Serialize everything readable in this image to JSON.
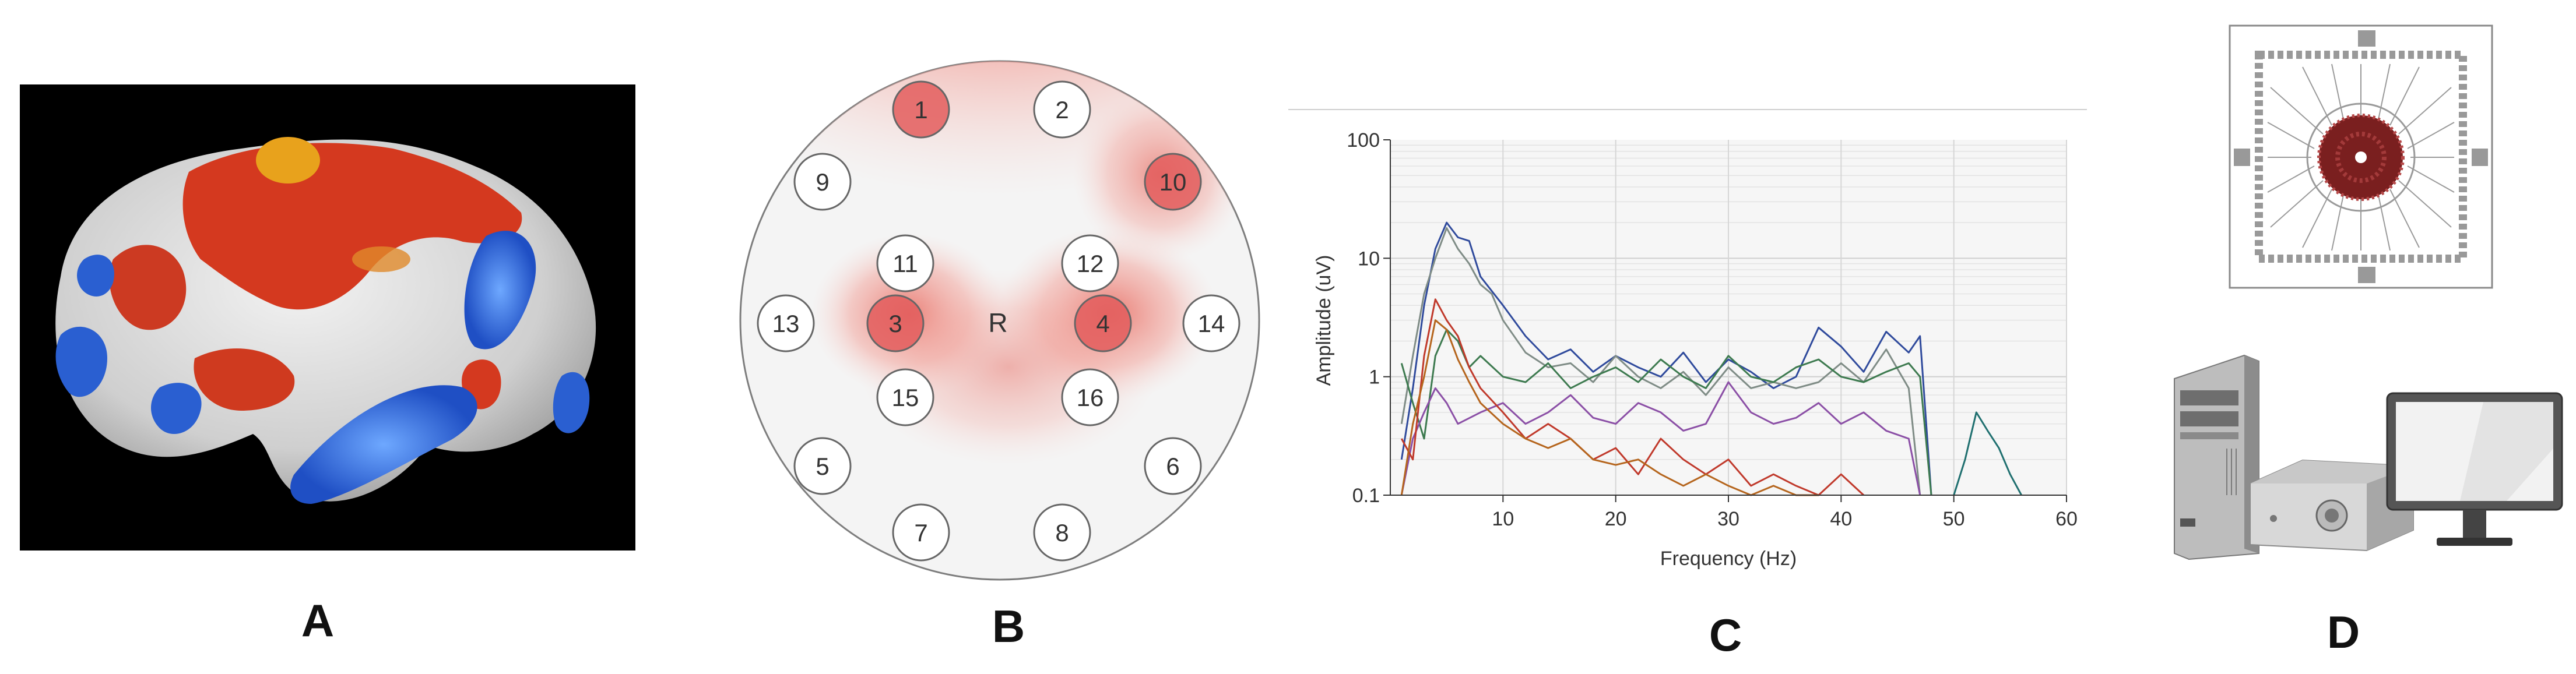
{
  "figure": {
    "panels": [
      {
        "letter": "A",
        "content": "brain-surface-activation-map"
      },
      {
        "letter": "B",
        "content": "electrode-topography-map"
      },
      {
        "letter": "C",
        "content": "amplitude-spectrum-chart"
      },
      {
        "letter": "D",
        "content": "recording-hardware-illustration"
      }
    ]
  },
  "brain_map": {
    "colors": {
      "background": "#000000",
      "cortex": "#d9d9d9",
      "positive": "#d4391f",
      "positive_peak": "#e8a21c",
      "negative": "#2a5fd1"
    }
  },
  "topography": {
    "reference_label": "R",
    "electrodes": [
      {
        "label": "1",
        "active": true
      },
      {
        "label": "2",
        "active": false
      },
      {
        "label": "3",
        "active": true
      },
      {
        "label": "4",
        "active": true
      },
      {
        "label": "5",
        "active": false
      },
      {
        "label": "6",
        "active": false
      },
      {
        "label": "7",
        "active": false
      },
      {
        "label": "8",
        "active": false
      },
      {
        "label": "9",
        "active": false
      },
      {
        "label": "10",
        "active": true
      },
      {
        "label": "11",
        "active": false
      },
      {
        "label": "12",
        "active": false
      },
      {
        "label": "13",
        "active": false
      },
      {
        "label": "14",
        "active": false
      },
      {
        "label": "15",
        "active": false
      },
      {
        "label": "16",
        "active": false
      }
    ],
    "colors": {
      "heat": "#e8685c",
      "active_fill": "#e35d5d",
      "idle_fill": "#ffffff",
      "outline": "#666666"
    }
  },
  "chart_data": {
    "type": "line",
    "title": "",
    "xlabel": "Frequency (Hz)",
    "ylabel": "Amplitude (uV)",
    "xlim": [
      0,
      60
    ],
    "ylim": [
      0.1,
      100
    ],
    "yscale": "log",
    "x_ticks": [
      "10",
      "20",
      "30",
      "40",
      "50",
      "60"
    ],
    "y_ticks": [
      "0.1",
      "1",
      "10",
      "100"
    ],
    "grid": true,
    "series": [
      {
        "name": "blue",
        "color": "#2f4a9c",
        "x": [
          1,
          2,
          3,
          4,
          5,
          6,
          7,
          8,
          10,
          12,
          14,
          16,
          18,
          20,
          22,
          24,
          26,
          28,
          30,
          32,
          34,
          36,
          38,
          40,
          42,
          44,
          46,
          47,
          48
        ],
        "y": [
          0.2,
          0.8,
          4,
          12,
          20,
          15,
          14,
          7,
          4,
          2.2,
          1.4,
          1.7,
          1.1,
          1.5,
          1.2,
          1.0,
          1.6,
          0.9,
          1.4,
          1.1,
          0.8,
          1.0,
          2.6,
          1.8,
          1.1,
          2.4,
          1.6,
          2.2,
          0.1
        ]
      },
      {
        "name": "gray",
        "color": "#7f8c86",
        "x": [
          1,
          2,
          3,
          4,
          5,
          6,
          7,
          8,
          9,
          10,
          12,
          14,
          16,
          18,
          20,
          22,
          24,
          26,
          28,
          30,
          32,
          34,
          36,
          38,
          40,
          42,
          44,
          46,
          47
        ],
        "y": [
          0.4,
          1.5,
          5,
          10,
          18,
          12,
          9,
          6,
          5,
          3,
          1.6,
          1.2,
          1.3,
          0.9,
          1.5,
          1.0,
          0.8,
          1.1,
          0.7,
          1.2,
          0.8,
          0.9,
          0.8,
          0.9,
          1.3,
          0.9,
          1.7,
          0.8,
          0.1
        ]
      },
      {
        "name": "green",
        "color": "#3d7a4f",
        "x": [
          1,
          2,
          3,
          4,
          5,
          6,
          7,
          8,
          10,
          12,
          14,
          16,
          18,
          20,
          22,
          24,
          26,
          28,
          30,
          32,
          34,
          36,
          38,
          40,
          42,
          44,
          46,
          47,
          48
        ],
        "y": [
          1.3,
          0.6,
          0.3,
          1.5,
          2.5,
          2.0,
          1.2,
          1.5,
          1.0,
          0.9,
          1.3,
          0.8,
          1.0,
          1.2,
          0.9,
          1.4,
          1.0,
          0.8,
          1.5,
          1.0,
          0.9,
          1.2,
          1.4,
          1.0,
          0.9,
          1.1,
          1.3,
          1.0,
          0.1
        ]
      },
      {
        "name": "purple",
        "color": "#8b4fa6",
        "x": [
          1,
          2,
          3,
          4,
          5,
          6,
          8,
          10,
          12,
          14,
          16,
          18,
          20,
          22,
          24,
          26,
          28,
          30,
          32,
          34,
          36,
          38,
          40,
          42,
          44,
          46,
          47
        ],
        "y": [
          0.1,
          0.3,
          0.5,
          0.8,
          0.6,
          0.4,
          0.5,
          0.6,
          0.4,
          0.5,
          0.7,
          0.45,
          0.4,
          0.6,
          0.5,
          0.35,
          0.4,
          0.9,
          0.5,
          0.4,
          0.45,
          0.6,
          0.4,
          0.5,
          0.35,
          0.3,
          0.1
        ]
      },
      {
        "name": "red",
        "color": "#c0392b",
        "x": [
          1,
          2,
          3,
          4,
          5,
          6,
          7,
          8,
          10,
          12,
          14,
          16,
          18,
          20,
          22,
          24,
          26,
          28,
          30,
          32,
          34,
          36,
          38,
          40,
          42
        ],
        "y": [
          0.3,
          0.2,
          1.5,
          4.5,
          3,
          2.2,
          1.2,
          0.8,
          0.5,
          0.3,
          0.4,
          0.3,
          0.2,
          0.25,
          0.15,
          0.3,
          0.2,
          0.15,
          0.2,
          0.12,
          0.15,
          0.12,
          0.1,
          0.15,
          0.1
        ]
      },
      {
        "name": "orange",
        "color": "#b5651d",
        "x": [
          1,
          2,
          3,
          4,
          5,
          6,
          7,
          8,
          10,
          12,
          14,
          16,
          18,
          20,
          22,
          24,
          26,
          28,
          30,
          32,
          34,
          36,
          38
        ],
        "y": [
          0.1,
          0.4,
          1.0,
          3,
          2.5,
          1.4,
          0.9,
          0.6,
          0.4,
          0.3,
          0.25,
          0.3,
          0.2,
          0.18,
          0.2,
          0.15,
          0.12,
          0.15,
          0.12,
          0.1,
          0.12,
          0.1,
          0.1
        ]
      },
      {
        "name": "teal",
        "color": "#1f6f6f",
        "x": [
          50,
          51,
          52,
          53,
          54,
          55,
          56
        ],
        "y": [
          0.1,
          0.2,
          0.5,
          0.35,
          0.25,
          0.15,
          0.1
        ]
      }
    ]
  },
  "hardware": {
    "chip_colors": {
      "die": "#7a1f1f",
      "pads": "#999999",
      "frame": "#888888"
    },
    "devices": [
      "chip",
      "computer-tower",
      "amplifier",
      "monitor"
    ]
  }
}
